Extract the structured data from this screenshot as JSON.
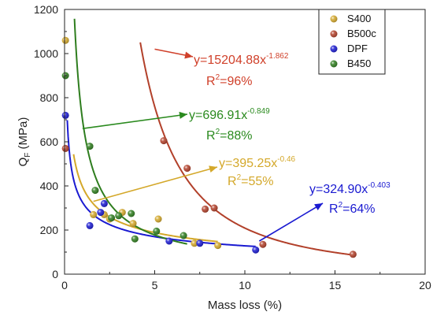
{
  "chart_data": {
    "type": "scatter",
    "xlabel": "Mass loss (%)",
    "ylabel_main": "Q",
    "ylabel_sub": "F",
    "ylabel_unit": " (MPa)",
    "xlim": [
      0,
      20
    ],
    "ylim": [
      0,
      1200
    ],
    "xticks": [
      0,
      5,
      10,
      15,
      20
    ],
    "yticks": [
      0,
      200,
      400,
      600,
      800,
      1000,
      1200
    ],
    "legend_position": "top-right",
    "series": [
      {
        "name": "S400",
        "color": "#d4a82a",
        "points": [
          [
            0.05,
            1060
          ],
          [
            1.6,
            270
          ],
          [
            2.2,
            270
          ],
          [
            2.5,
            250
          ],
          [
            3.2,
            280
          ],
          [
            3.8,
            230
          ],
          [
            5.2,
            250
          ],
          [
            7.2,
            140
          ],
          [
            8.5,
            130
          ]
        ],
        "fit": {
          "a": 395.25,
          "b": -0.46,
          "x_from": 0.5,
          "x_to": 8.5
        }
      },
      {
        "name": "B500c",
        "color": "#b2402a",
        "points": [
          [
            0.05,
            570
          ],
          [
            5.5,
            605
          ],
          [
            6.8,
            480
          ],
          [
            7.8,
            295
          ],
          [
            8.3,
            300
          ],
          [
            11.0,
            135
          ],
          [
            16.0,
            90
          ]
        ],
        "fit": {
          "a": 15204.88,
          "b": -1.862,
          "x_from": 4.2,
          "x_to": 16.0
        }
      },
      {
        "name": "DPF",
        "color": "#1a1ad1",
        "points": [
          [
            0.05,
            720
          ],
          [
            1.4,
            220
          ],
          [
            2.0,
            280
          ],
          [
            2.2,
            320
          ],
          [
            5.8,
            150
          ],
          [
            7.5,
            140
          ],
          [
            10.6,
            110
          ]
        ],
        "fit": {
          "a": 324.9,
          "b": -0.403,
          "x_from": 0.15,
          "x_to": 10.6
        }
      },
      {
        "name": "B450",
        "color": "#2e7d1e",
        "points": [
          [
            0.05,
            900
          ],
          [
            1.4,
            580
          ],
          [
            1.7,
            380
          ],
          [
            2.6,
            255
          ],
          [
            3.0,
            265
          ],
          [
            3.7,
            275
          ],
          [
            3.9,
            160
          ],
          [
            5.1,
            195
          ],
          [
            6.6,
            175
          ]
        ],
        "fit": {
          "a": 696.91,
          "b": -0.849,
          "x_from": 0.55,
          "x_to": 6.8
        }
      }
    ],
    "annotations": [
      {
        "series": "B500c",
        "equation": "y=15204.88x",
        "exponent": "-1.862",
        "r2_label": "R",
        "r2_exp": "2",
        "r2_value": "=96%",
        "color": "#d0402a"
      },
      {
        "series": "B450",
        "equation": "y=696.91x",
        "exponent": "-0.849",
        "r2_label": "R",
        "r2_exp": "2",
        "r2_value": "=88%",
        "color": "#2a8a1e"
      },
      {
        "series": "S400",
        "equation": "y=395.25x",
        "exponent": "-0.46",
        "r2_label": "R",
        "r2_exp": "2",
        "r2_value": "=55%",
        "color": "#d4a82a"
      },
      {
        "series": "DPF",
        "equation": "y=324.90x",
        "exponent": "-0.403",
        "r2_label": "R",
        "r2_exp": "2",
        "r2_value": "=64%",
        "color": "#1a1ad1"
      }
    ]
  }
}
